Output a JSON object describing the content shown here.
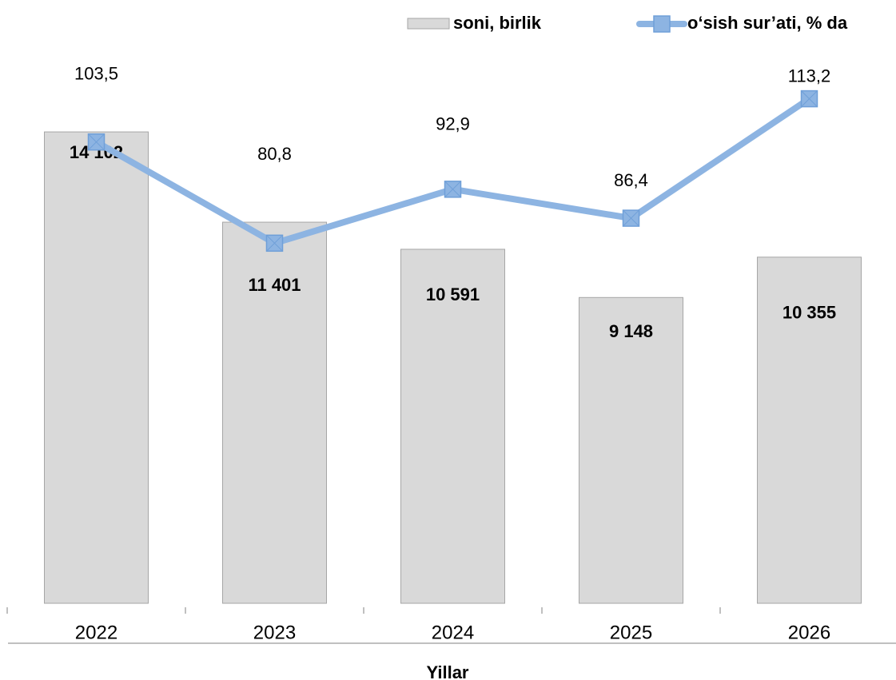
{
  "chart_data": {
    "type": "bar",
    "categories": [
      "2022",
      "2023",
      "2024",
      "2025",
      "2026"
    ],
    "x_label": "Yillar",
    "ylim": [
      0,
      18000
    ],
    "y2lim": [
      0,
      135
    ],
    "series": [
      {
        "name": "soni, birlik",
        "type": "bar",
        "color": "#d9d9d9",
        "values": [
          14102,
          11401,
          10591,
          9148,
          10355
        ],
        "value_labels": [
          "14 102",
          "11 401",
          "10 591",
          "9 148",
          "10 355"
        ]
      },
      {
        "name": "o‘sish sur’ati, % da",
        "type": "line",
        "axis": "y2",
        "color": "#8db4e2",
        "values": [
          103.5,
          80.8,
          92.9,
          86.4,
          113.2
        ],
        "value_labels": [
          "103,5",
          "80,8",
          "92,9",
          "86,4",
          "113,2"
        ]
      }
    ]
  }
}
